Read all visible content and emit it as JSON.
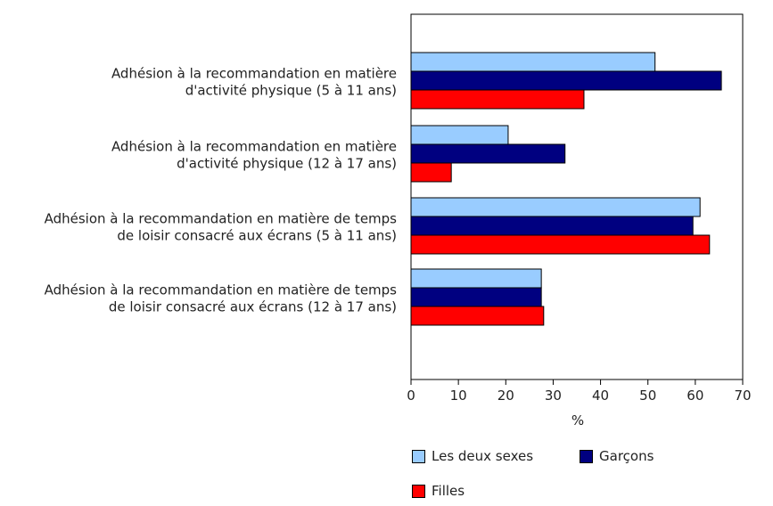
{
  "chart_data": {
    "type": "bar",
    "orientation": "horizontal",
    "categories": [
      [
        "Adhésion à la recommandation en matière",
        "d'activité physique (5 à 11 ans)"
      ],
      [
        "Adhésion à la recommandation en matière",
        "d'activité physique (12 à 17 ans)"
      ],
      [
        "Adhésion à la recommandation en matière de temps",
        "de loisir consacré aux écrans (5 à 11 ans)"
      ],
      [
        "Adhésion à la recommandation en matière de temps",
        "de loisir consacré aux écrans (12 à 17 ans)"
      ]
    ],
    "series": [
      {
        "name": "Les deux sexes",
        "color": "#99ccff",
        "values": [
          51.5,
          20.5,
          61,
          27.5
        ]
      },
      {
        "name": "Garçons",
        "color": "#000080",
        "values": [
          65.5,
          32.5,
          59.5,
          27.5
        ]
      },
      {
        "name": "Filles",
        "color": "#ff0000",
        "values": [
          36.5,
          8.5,
          63,
          28
        ]
      }
    ],
    "xlabel": "%",
    "xlim": [
      0,
      70
    ],
    "xticks": [
      "0",
      "10",
      "20",
      "30",
      "40",
      "50",
      "60",
      "70"
    ],
    "grid": false,
    "legend_position": "bottom"
  }
}
